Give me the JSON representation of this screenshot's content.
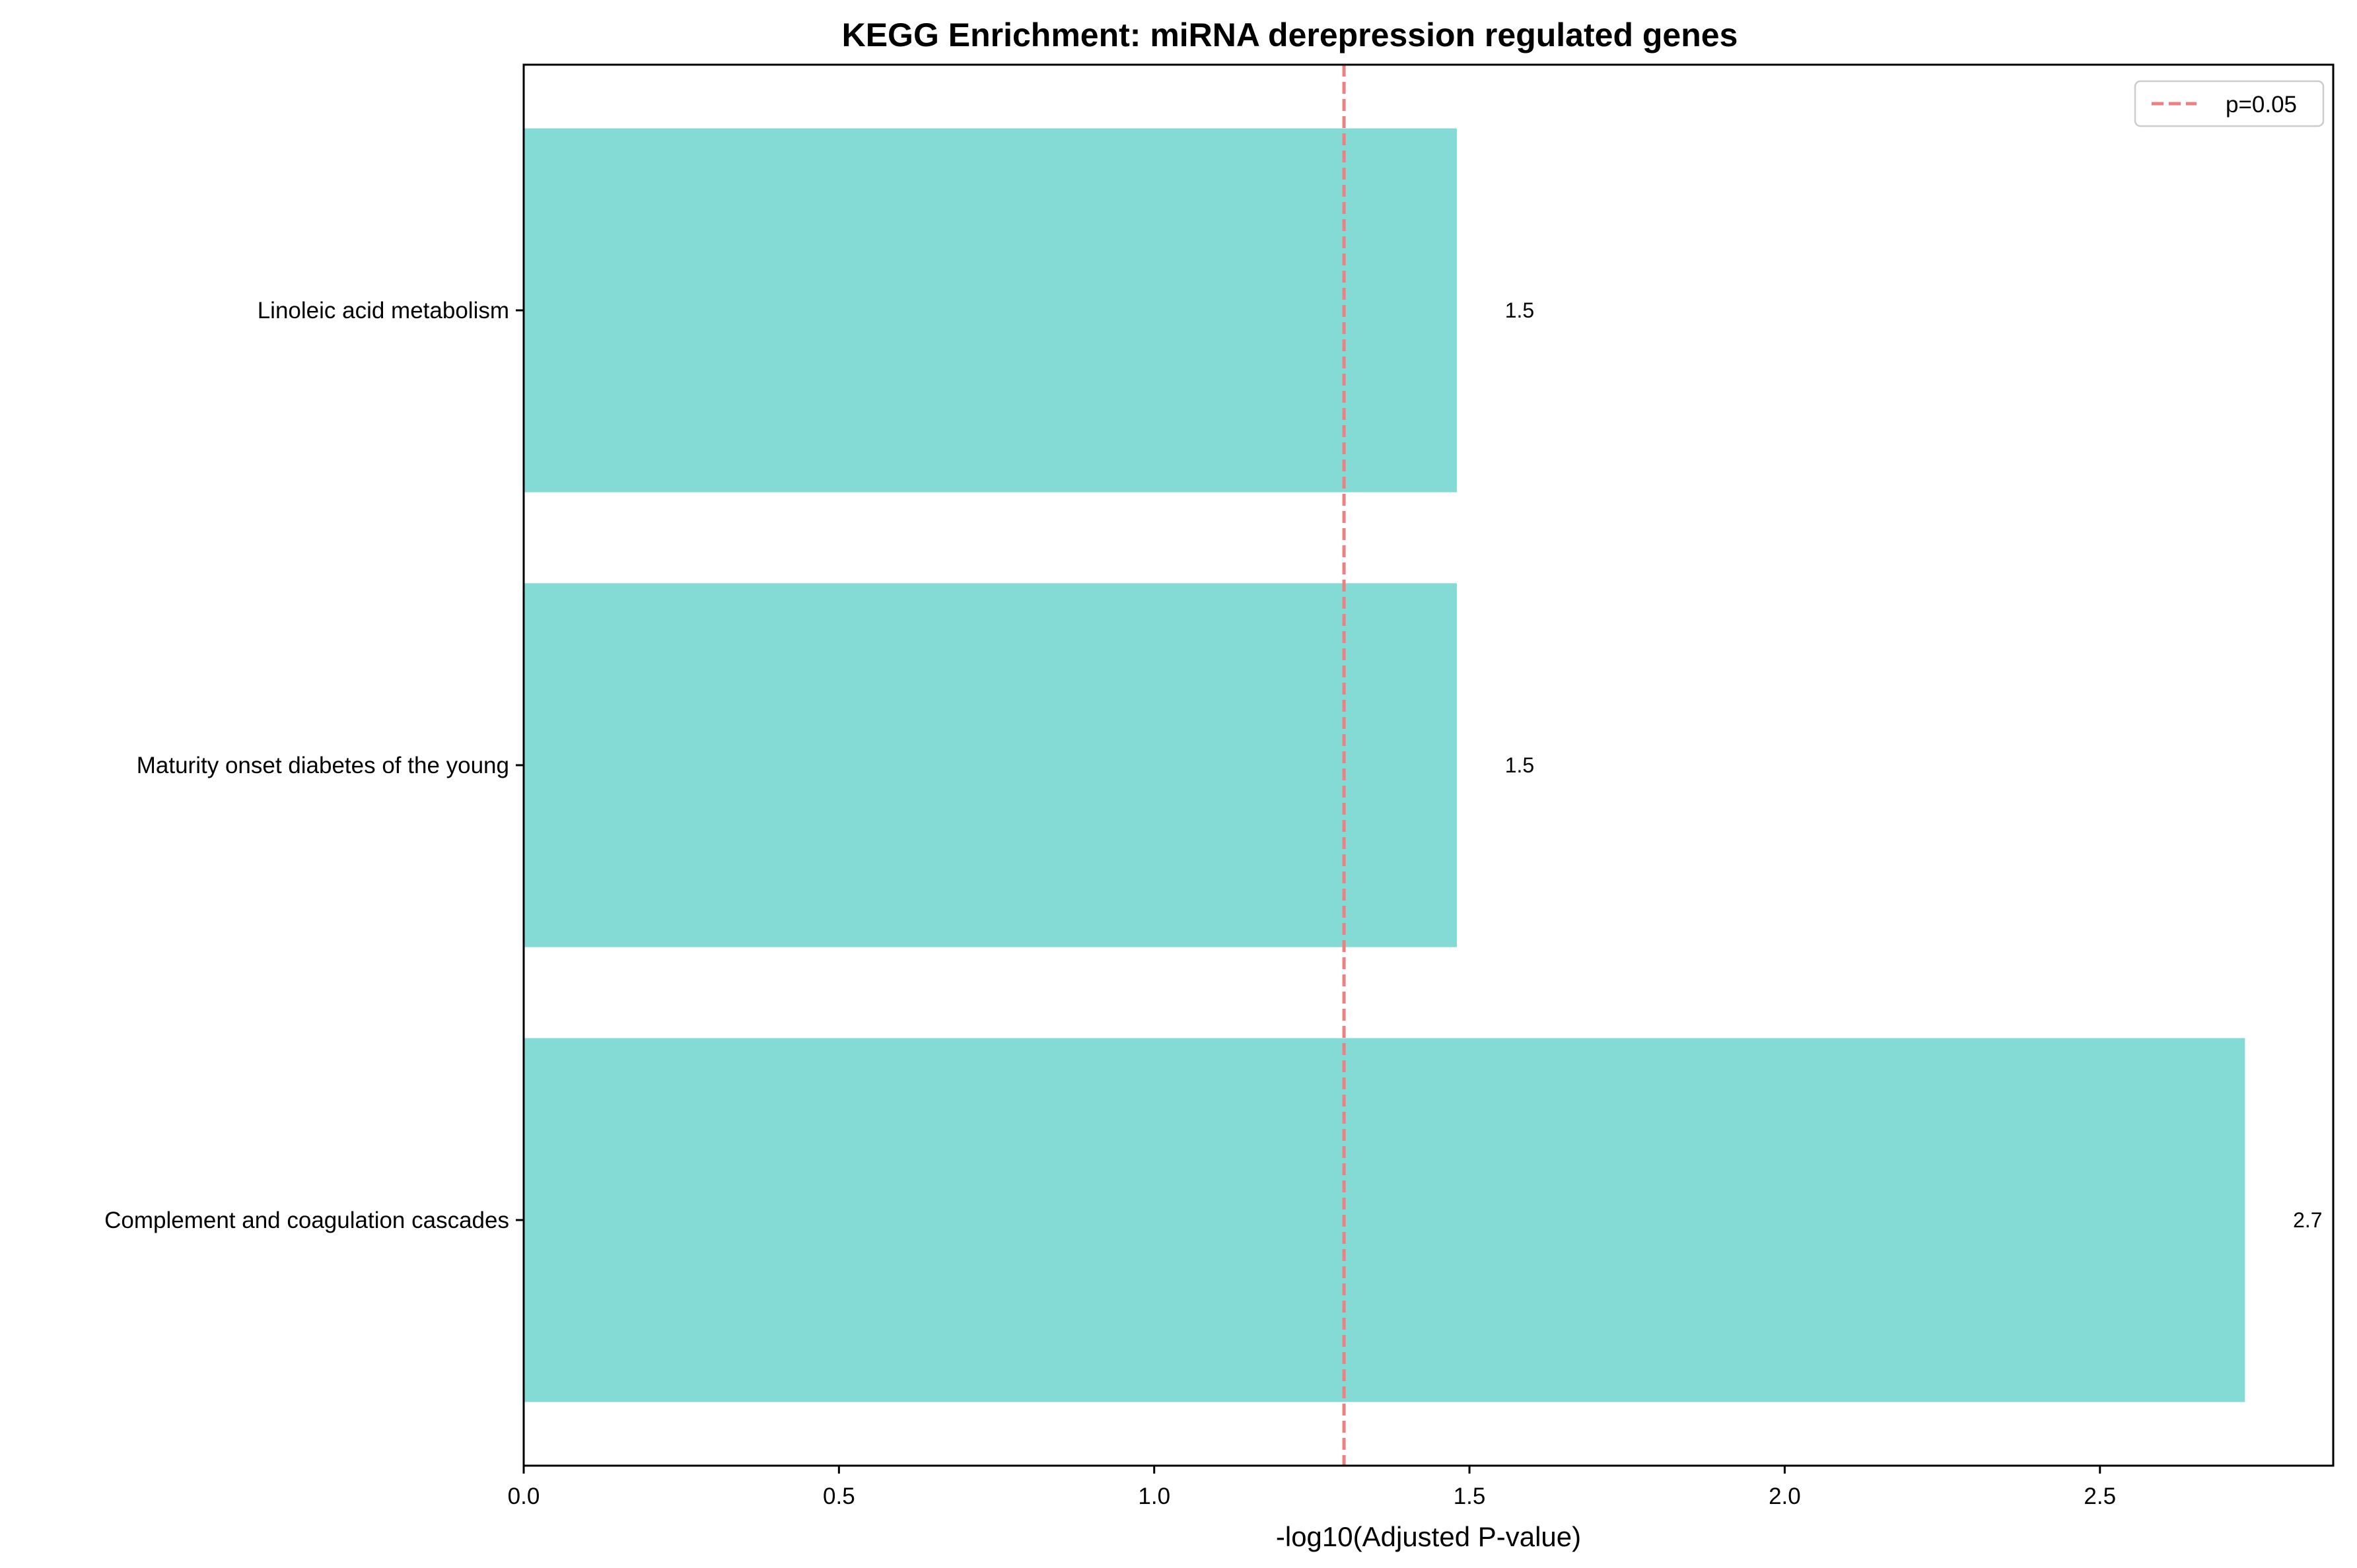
{
  "chart_data": {
    "type": "bar",
    "orientation": "horizontal",
    "title": "KEGG Enrichment: miRNA derepression regulated genes",
    "xlabel": "-log10(Adjusted P-value)",
    "ylabel": "",
    "categories": [
      "Complement and coagulation cascades",
      "Maturity onset diabetes of the young",
      "Linoleic acid metabolism"
    ],
    "values": [
      2.73,
      1.48,
      1.48
    ],
    "data_labels": [
      "2.7",
      "1.5",
      "1.5"
    ],
    "xlim": [
      0,
      2.87
    ],
    "xticks": [
      0.0,
      0.5,
      1.0,
      1.5,
      2.0,
      2.5
    ],
    "xtick_labels": [
      "0.0",
      "0.5",
      "1.0",
      "1.5",
      "2.0",
      "2.5"
    ],
    "bar_color": "#84dbd6",
    "threshold": {
      "value": 1.30103,
      "label": "p=0.05",
      "color": "#f08080",
      "style": "dashed"
    },
    "grid": false,
    "legend_position": "top-right"
  }
}
